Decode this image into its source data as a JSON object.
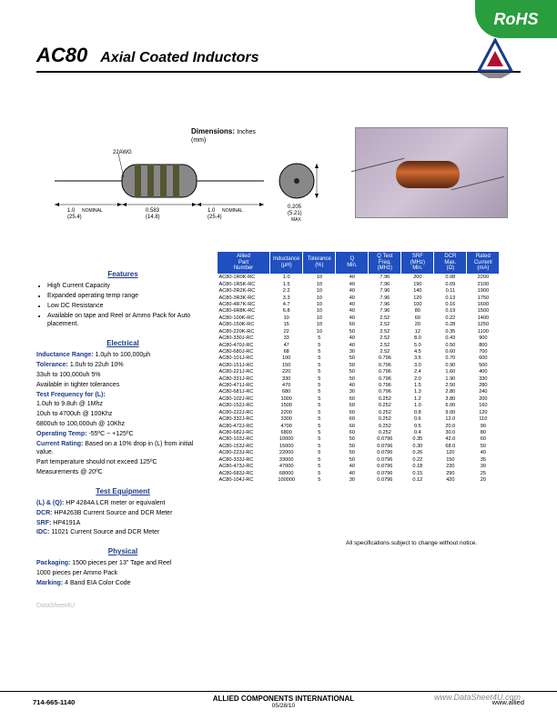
{
  "badge": "RoHS",
  "header": {
    "code": "AC80",
    "title": "Axial Coated Inductors"
  },
  "dimensions": {
    "label": "Dimensions:",
    "units_top": "Inches",
    "units_bot": "(mm)"
  },
  "diagram": {
    "awg": "22AWG",
    "len_nom_in": "1.0",
    "len_nom_mm": "(25.4)",
    "nom": "NOMINAL",
    "body_in": "0.583",
    "body_mm": "(14.8)",
    "dia_in": "0.205",
    "dia_mm": "(5.21)",
    "max": "MAX"
  },
  "sections": {
    "features_title": "Features",
    "features": [
      "High Current Capacity",
      "Expanded operating temp range",
      "Low DC Resistance",
      "Available on tape and Reel or Ammo Pack for Auto placement."
    ],
    "electrical_title": "Electrical",
    "electrical": [
      {
        "k": "Inductance Range:",
        "v": "1.0µh to 100,000µh"
      },
      {
        "k": "Tolerance:",
        "v": "1.0uh to 22uh 10%"
      },
      {
        "k": "",
        "v": "33uh to 100,000uh 5%"
      },
      {
        "k": "",
        "v": "Available in tighter tolerances"
      },
      {
        "k": "Test Frequency for (L):",
        "v": ""
      },
      {
        "k": "",
        "v": "1.0uh to 9.8uh @ 1Mhz"
      },
      {
        "k": "",
        "v": "10uh to 4700uh @ 100Khz"
      },
      {
        "k": "",
        "v": "6800uh to 100,000uh @ 10Khz"
      },
      {
        "k": "Operating Temp:",
        "v": "-55ºC ~ +125ºC"
      },
      {
        "k": "Current Rating:",
        "v": "Based on a 10% drop in (L) from initial value."
      },
      {
        "k": "",
        "v": "Part temperature should not exceed 125ºC"
      },
      {
        "k": "",
        "v": "Measurements @ 20ºC"
      }
    ],
    "test_title": "Test Equipment",
    "test": [
      {
        "k": "(L) & (Q):",
        "v": "HP 4284A LCR meter or equivalent"
      },
      {
        "k": "DCR:",
        "v": "HP4263B Current Source and DCR Meter"
      },
      {
        "k": "SRF:",
        "v": "HP4191A"
      },
      {
        "k": "IDC:",
        "v": "11021 Current Source and DCR Meter"
      }
    ],
    "physical_title": "Physical",
    "physical": [
      {
        "k": "Packaging:",
        "v": "1500 pieces per 13\" Tape and Reel"
      },
      {
        "k": "",
        "v": "1000 pieces per Ammo Pack"
      },
      {
        "k": "Marking:",
        "v": "4 Band EIA Color Code"
      }
    ]
  },
  "table": {
    "headers": [
      "Allied\nPart\nNumber",
      "Inductance\n(µH)",
      "Tolerance\n(%)",
      "Q\nMin.",
      "Q Test\nFreq.\n(MHz)",
      "SRF\n(MHz)\nMin.",
      "DCR\nMax.\n(Ω)",
      "Rated\nCurrent\n(mA)"
    ],
    "rows": [
      [
        "AC80-1R0K-RC",
        "1.0",
        "10",
        "40",
        "7.96",
        "200",
        "0.08",
        "2200"
      ],
      [
        "AC80-1R5K-RC",
        "1.5",
        "10",
        "40",
        "7.96",
        "190",
        "0.09",
        "2100"
      ],
      [
        "AC80-2R2K-RC",
        "2.2",
        "10",
        "40",
        "7.96",
        "140",
        "0.11",
        "1900"
      ],
      [
        "AC80-3R3K-RC",
        "3.3",
        "10",
        "40",
        "7.96",
        "120",
        "0.13",
        "1750"
      ],
      [
        "AC80-4R7K-RC",
        "4.7",
        "10",
        "40",
        "7.96",
        "100",
        "0.16",
        "1600"
      ],
      [
        "AC80-6R8K-RC",
        "6.8",
        "10",
        "40",
        "7.96",
        "80",
        "0.19",
        "1500"
      ],
      [
        "AC80-100K-RC",
        "10",
        "10",
        "40",
        "2.52",
        "60",
        "0.22",
        "1400"
      ],
      [
        "AC80-150K-RC",
        "15",
        "10",
        "60",
        "2.52",
        "20",
        "0.28",
        "1250"
      ],
      [
        "AC80-220K-RC",
        "22",
        "10",
        "50",
        "2.52",
        "12",
        "0.35",
        "1100"
      ],
      [
        "AC80-330J-RC",
        "33",
        "5",
        "40",
        "2.52",
        "8.0",
        "0.43",
        "900"
      ],
      [
        "AC80-470J-RC",
        "47",
        "5",
        "40",
        "2.52",
        "5.0",
        "0.50",
        "800"
      ],
      [
        "AC80-680J-RC",
        "68",
        "5",
        "30",
        "2.52",
        "4.5",
        "0.60",
        "700"
      ],
      [
        "AC80-101J-RC",
        "100",
        "5",
        "50",
        "0.796",
        "3.5",
        "0.70",
        "600"
      ],
      [
        "AC80-151J-RC",
        "150",
        "5",
        "50",
        "0.796",
        "3.0",
        "0.90",
        "500"
      ],
      [
        "AC80-221J-RC",
        "220",
        "5",
        "50",
        "0.796",
        "2.4",
        "1.60",
        "400"
      ],
      [
        "AC80-331J-RC",
        "330",
        "5",
        "50",
        "0.796",
        "2.0",
        "1.90",
        "330"
      ],
      [
        "AC80-471J-RC",
        "470",
        "5",
        "40",
        "0.796",
        "1.5",
        "2.50",
        "280"
      ],
      [
        "AC80-681J-RC",
        "680",
        "5",
        "30",
        "0.796",
        "1.3",
        "2.80",
        "240"
      ],
      [
        "AC80-102J-RC",
        "1000",
        "5",
        "60",
        "0.252",
        "1.2",
        "3.80",
        "200"
      ],
      [
        "AC80-152J-RC",
        "1500",
        "5",
        "60",
        "0.252",
        "1.0",
        "6.00",
        "160"
      ],
      [
        "AC80-222J-RC",
        "2200",
        "5",
        "60",
        "0.252",
        "0.8",
        "9.00",
        "120"
      ],
      [
        "AC80-332J-RC",
        "3300",
        "5",
        "60",
        "0.252",
        "0.6",
        "12.0",
        "110"
      ],
      [
        "AC80-472J-RC",
        "4700",
        "5",
        "60",
        "0.252",
        "0.5",
        "20.0",
        "90"
      ],
      [
        "AC80-682J-RC",
        "6800",
        "5",
        "60",
        "0.252",
        "0.4",
        "30.0",
        "80"
      ],
      [
        "AC80-103J-RC",
        "10000",
        "5",
        "50",
        "0.0796",
        "0.35",
        "42.0",
        "60"
      ],
      [
        "AC80-153J-RC",
        "15000",
        "5",
        "50",
        "0.0796",
        "0.30",
        "68.0",
        "50"
      ],
      [
        "AC80-223J-RC",
        "22000",
        "5",
        "50",
        "0.0796",
        "0.26",
        "120",
        "40"
      ],
      [
        "AC80-333J-RC",
        "33000",
        "5",
        "50",
        "0.0796",
        "0.22",
        "150",
        "35"
      ],
      [
        "AC80-473J-RC",
        "47000",
        "5",
        "40",
        "0.0796",
        "0.18",
        "230",
        "30"
      ],
      [
        "AC80-683J-RC",
        "68000",
        "5",
        "40",
        "0.0796",
        "0.15",
        "290",
        "25"
      ],
      [
        "AC80-104J-RC",
        "100000",
        "5",
        "30",
        "0.0796",
        "0.12",
        "420",
        "20"
      ]
    ],
    "note": "All specifications subject to change without notice."
  },
  "footer": {
    "phone": "714-665-1140",
    "company": "ALLIED COMPONENTS INTERNATIONAL",
    "date": "05/28/10",
    "url": "www.allied"
  },
  "watermark": "www.DataSheet4U.com",
  "colors": {
    "header_bg": "#2050c0",
    "accent": "#1a3a8a",
    "rohs": "#2a9d3e"
  }
}
